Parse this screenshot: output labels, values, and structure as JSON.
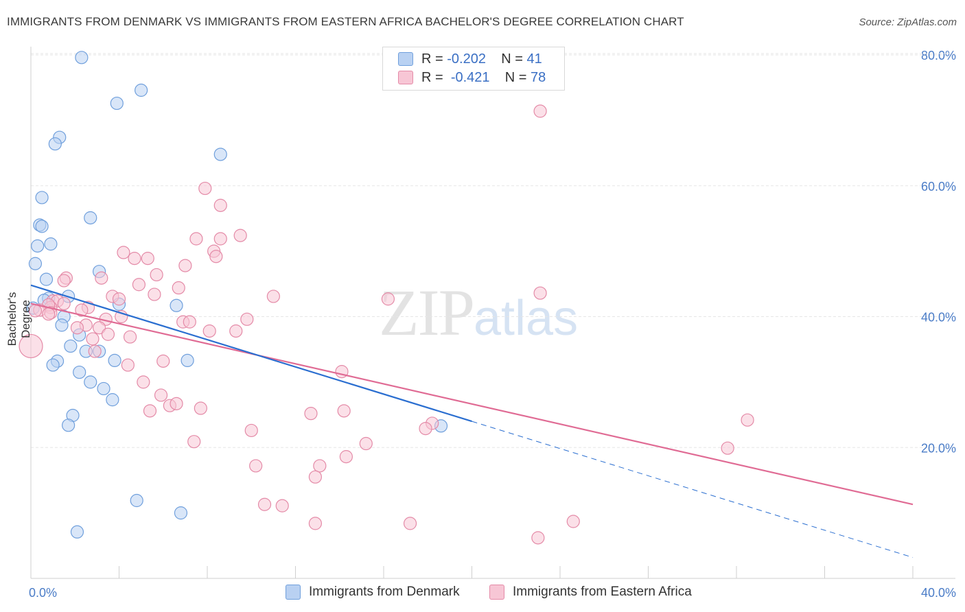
{
  "title": "IMMIGRANTS FROM DENMARK VS IMMIGRANTS FROM EASTERN AFRICA BACHELOR'S DEGREE CORRELATION CHART",
  "source": "Source: ZipAtlas.com",
  "watermark": {
    "zip": "ZIP",
    "atlas": "atlas"
  },
  "legend": {
    "r_label": "R =",
    "n_label": "N =",
    "rows": [
      {
        "r": "-0.202",
        "n": "41"
      },
      {
        "r": "-0.421",
        "n": "78"
      }
    ]
  },
  "colors": {
    "blue_fill": "#b9d1f2",
    "blue_stroke": "#6f9fdc",
    "blue_line": "#2a6ed0",
    "pink_fill": "#f7c6d5",
    "pink_stroke": "#e48aa7",
    "pink_line": "#e06b94",
    "axis_text": "#4a7cc7",
    "grid": "#e6e6e6"
  },
  "chart_data": {
    "type": "scatter",
    "title": "IMMIGRANTS FROM DENMARK VS IMMIGRANTS FROM EASTERN AFRICA BACHELOR'S DEGREE CORRELATION CHART",
    "xlabel": "",
    "ylabel": "Bachelor's Degree",
    "xlim": [
      0,
      40
    ],
    "ylim": [
      0,
      80
    ],
    "x_tick_labels": [
      "0.0%",
      "40.0%"
    ],
    "y_ticks": [
      20,
      40,
      60,
      80
    ],
    "y_tick_labels": [
      "20.0%",
      "40.0%",
      "60.0%",
      "80.0%"
    ],
    "series": [
      {
        "name": "Immigrants from Denmark",
        "color": "blue",
        "points": [
          [
            2.3,
            79.6
          ],
          [
            5.0,
            74.6
          ],
          [
            3.9,
            72.6
          ],
          [
            1.3,
            67.4
          ],
          [
            1.1,
            66.4
          ],
          [
            8.6,
            64.8
          ],
          [
            0.5,
            58.2
          ],
          [
            2.7,
            55.1
          ],
          [
            0.4,
            54.0
          ],
          [
            0.5,
            53.8
          ],
          [
            0.9,
            51.1
          ],
          [
            0.3,
            50.8
          ],
          [
            0.2,
            48.1
          ],
          [
            3.1,
            46.9
          ],
          [
            0.7,
            45.7
          ],
          [
            1.7,
            43.1
          ],
          [
            0.8,
            42.8
          ],
          [
            0.6,
            42.5
          ],
          [
            4.0,
            41.9
          ],
          [
            6.6,
            41.7
          ],
          [
            0.1,
            41.3
          ],
          [
            1.5,
            40.0
          ],
          [
            1.4,
            38.7
          ],
          [
            2.2,
            37.2
          ],
          [
            1.8,
            35.5
          ],
          [
            2.5,
            34.7
          ],
          [
            3.1,
            34.7
          ],
          [
            1.2,
            33.2
          ],
          [
            3.8,
            33.3
          ],
          [
            7.1,
            33.3
          ],
          [
            1.0,
            32.6
          ],
          [
            2.2,
            31.5
          ],
          [
            2.7,
            30.0
          ],
          [
            3.3,
            29.0
          ],
          [
            3.7,
            27.3
          ],
          [
            1.9,
            24.9
          ],
          [
            1.7,
            23.4
          ],
          [
            18.6,
            23.3
          ],
          [
            4.8,
            11.9
          ],
          [
            6.8,
            10.0
          ],
          [
            2.1,
            7.1
          ]
        ],
        "trend": {
          "x": [
            0,
            20
          ],
          "y": [
            44.8,
            24.0
          ]
        },
        "trend_extension": {
          "x": [
            20,
            40
          ],
          "y": [
            24.0,
            3.2
          ]
        }
      },
      {
        "name": "Immigrants from Eastern Africa",
        "color": "pink",
        "points": [
          [
            23.1,
            71.4
          ],
          [
            7.9,
            59.6
          ],
          [
            8.6,
            57.0
          ],
          [
            9.5,
            52.4
          ],
          [
            7.5,
            51.9
          ],
          [
            8.6,
            51.9
          ],
          [
            8.3,
            50.0
          ],
          [
            4.2,
            49.8
          ],
          [
            8.4,
            49.2
          ],
          [
            4.7,
            48.9
          ],
          [
            5.3,
            48.9
          ],
          [
            7.0,
            47.8
          ],
          [
            3.2,
            45.9
          ],
          [
            1.6,
            45.9
          ],
          [
            5.7,
            46.4
          ],
          [
            1.5,
            45.5
          ],
          [
            4.9,
            44.9
          ],
          [
            6.7,
            44.4
          ],
          [
            23.1,
            43.6
          ],
          [
            5.6,
            43.4
          ],
          [
            11.0,
            43.1
          ],
          [
            16.2,
            42.7
          ],
          [
            3.7,
            43.1
          ],
          [
            4.0,
            42.7
          ],
          [
            1.0,
            42.4
          ],
          [
            1.2,
            42.4
          ],
          [
            1.5,
            42.0
          ],
          [
            0.9,
            41.4
          ],
          [
            0.8,
            41.8
          ],
          [
            2.6,
            41.4
          ],
          [
            2.3,
            41.0
          ],
          [
            0.4,
            41.0
          ],
          [
            0.9,
            40.6
          ],
          [
            0.2,
            40.9
          ],
          [
            4.1,
            40.0
          ],
          [
            3.4,
            39.6
          ],
          [
            9.8,
            39.6
          ],
          [
            6.9,
            39.2
          ],
          [
            7.2,
            39.2
          ],
          [
            2.5,
            38.7
          ],
          [
            2.1,
            38.3
          ],
          [
            3.1,
            38.3
          ],
          [
            8.1,
            37.8
          ],
          [
            9.3,
            37.8
          ],
          [
            3.5,
            37.3
          ],
          [
            4.5,
            36.9
          ],
          [
            2.8,
            36.6
          ],
          [
            0.0,
            35.5
          ],
          [
            2.9,
            34.7
          ],
          [
            6.0,
            33.2
          ],
          [
            4.4,
            32.6
          ],
          [
            14.1,
            31.6
          ],
          [
            5.1,
            30.0
          ],
          [
            5.9,
            28.0
          ],
          [
            6.3,
            26.4
          ],
          [
            6.6,
            26.7
          ],
          [
            7.7,
            26.0
          ],
          [
            5.4,
            25.6
          ],
          [
            14.2,
            25.6
          ],
          [
            12.7,
            25.2
          ],
          [
            32.5,
            24.2
          ],
          [
            18.2,
            23.7
          ],
          [
            17.9,
            22.9
          ],
          [
            10.0,
            22.6
          ],
          [
            7.4,
            20.9
          ],
          [
            15.2,
            20.6
          ],
          [
            31.6,
            19.9
          ],
          [
            14.3,
            18.6
          ],
          [
            10.2,
            17.2
          ],
          [
            13.1,
            17.2
          ],
          [
            12.9,
            15.5
          ],
          [
            10.6,
            11.3
          ],
          [
            11.4,
            11.1
          ],
          [
            12.9,
            8.4
          ],
          [
            17.2,
            8.4
          ],
          [
            24.6,
            8.7
          ],
          [
            23.0,
            6.2
          ],
          [
            0.8,
            40.4
          ]
        ],
        "trend": {
          "x": [
            0,
            40
          ],
          "y": [
            42.0,
            11.3
          ]
        }
      }
    ]
  }
}
